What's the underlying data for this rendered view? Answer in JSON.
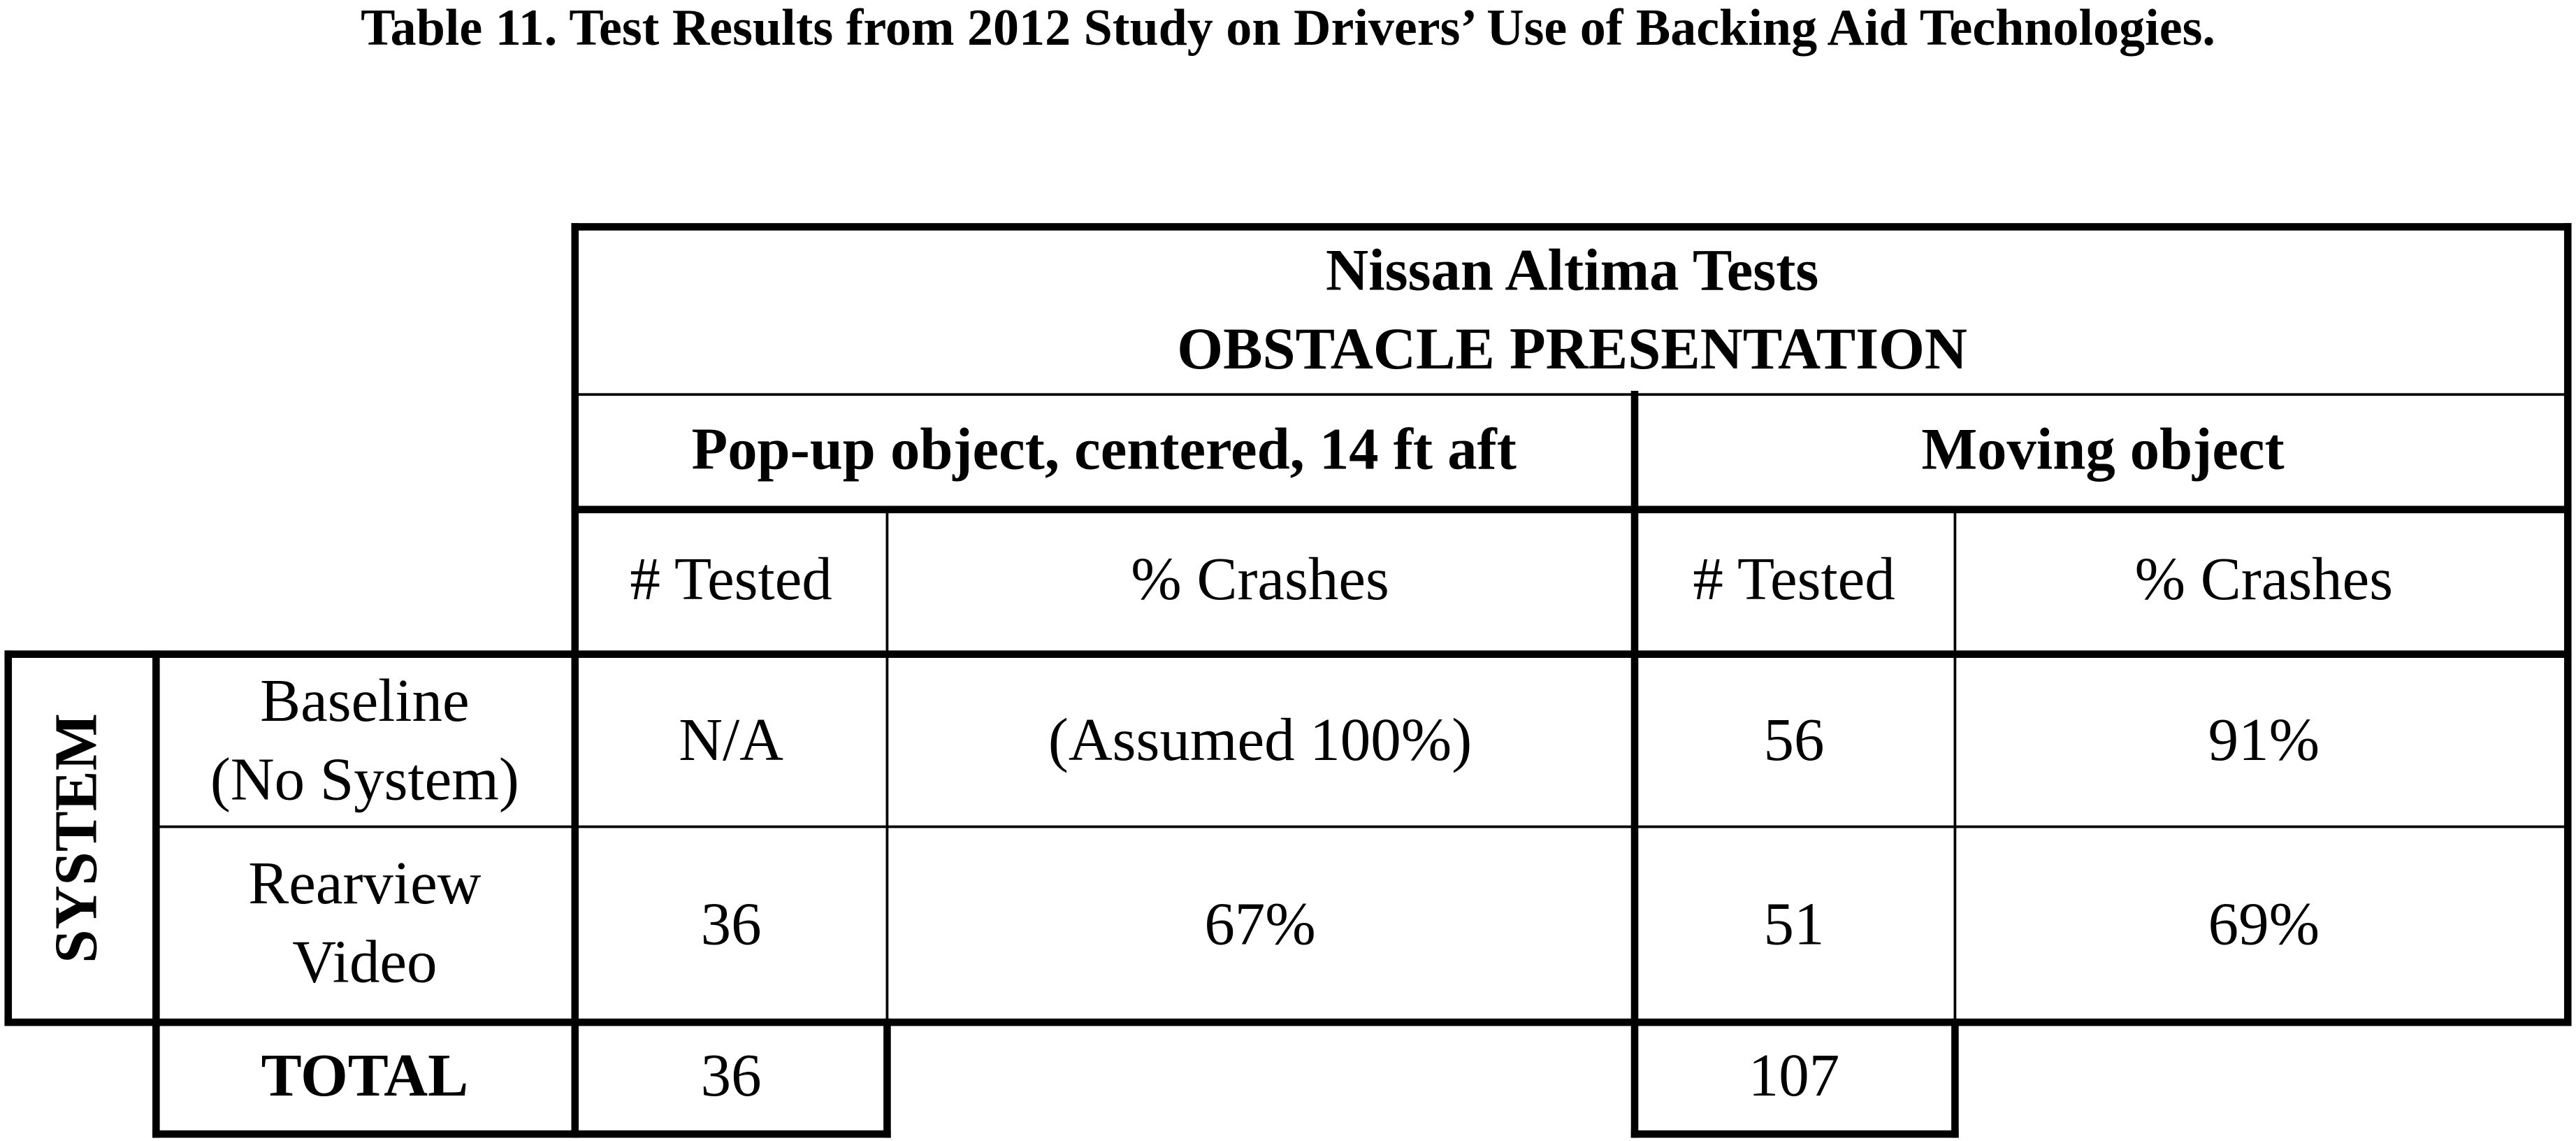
{
  "title": "Table 11.  Test Results from 2012 Study on Drivers’ Use of Backing Aid Technologies.",
  "table": {
    "header": {
      "group": "Nissan Altima Tests",
      "subgroup": "OBSTACLE PRESENTATION",
      "conditions": [
        "Pop-up object, centered, 14 ft aft",
        "Moving object"
      ],
      "columns": [
        "# Tested",
        "% Crashes",
        "# Tested",
        "% Crashes"
      ]
    },
    "row_group": "SYSTEM",
    "rows": [
      {
        "label": [
          "Baseline",
          "(No System)"
        ],
        "cells": [
          "N/A",
          "(Assumed 100%)",
          "56",
          "91%"
        ]
      },
      {
        "label": [
          "Rearview",
          "Video"
        ],
        "cells": [
          "36",
          "67%",
          "51",
          "69%"
        ]
      }
    ],
    "total": {
      "label": "TOTAL",
      "cells": [
        "36",
        "107"
      ]
    }
  }
}
